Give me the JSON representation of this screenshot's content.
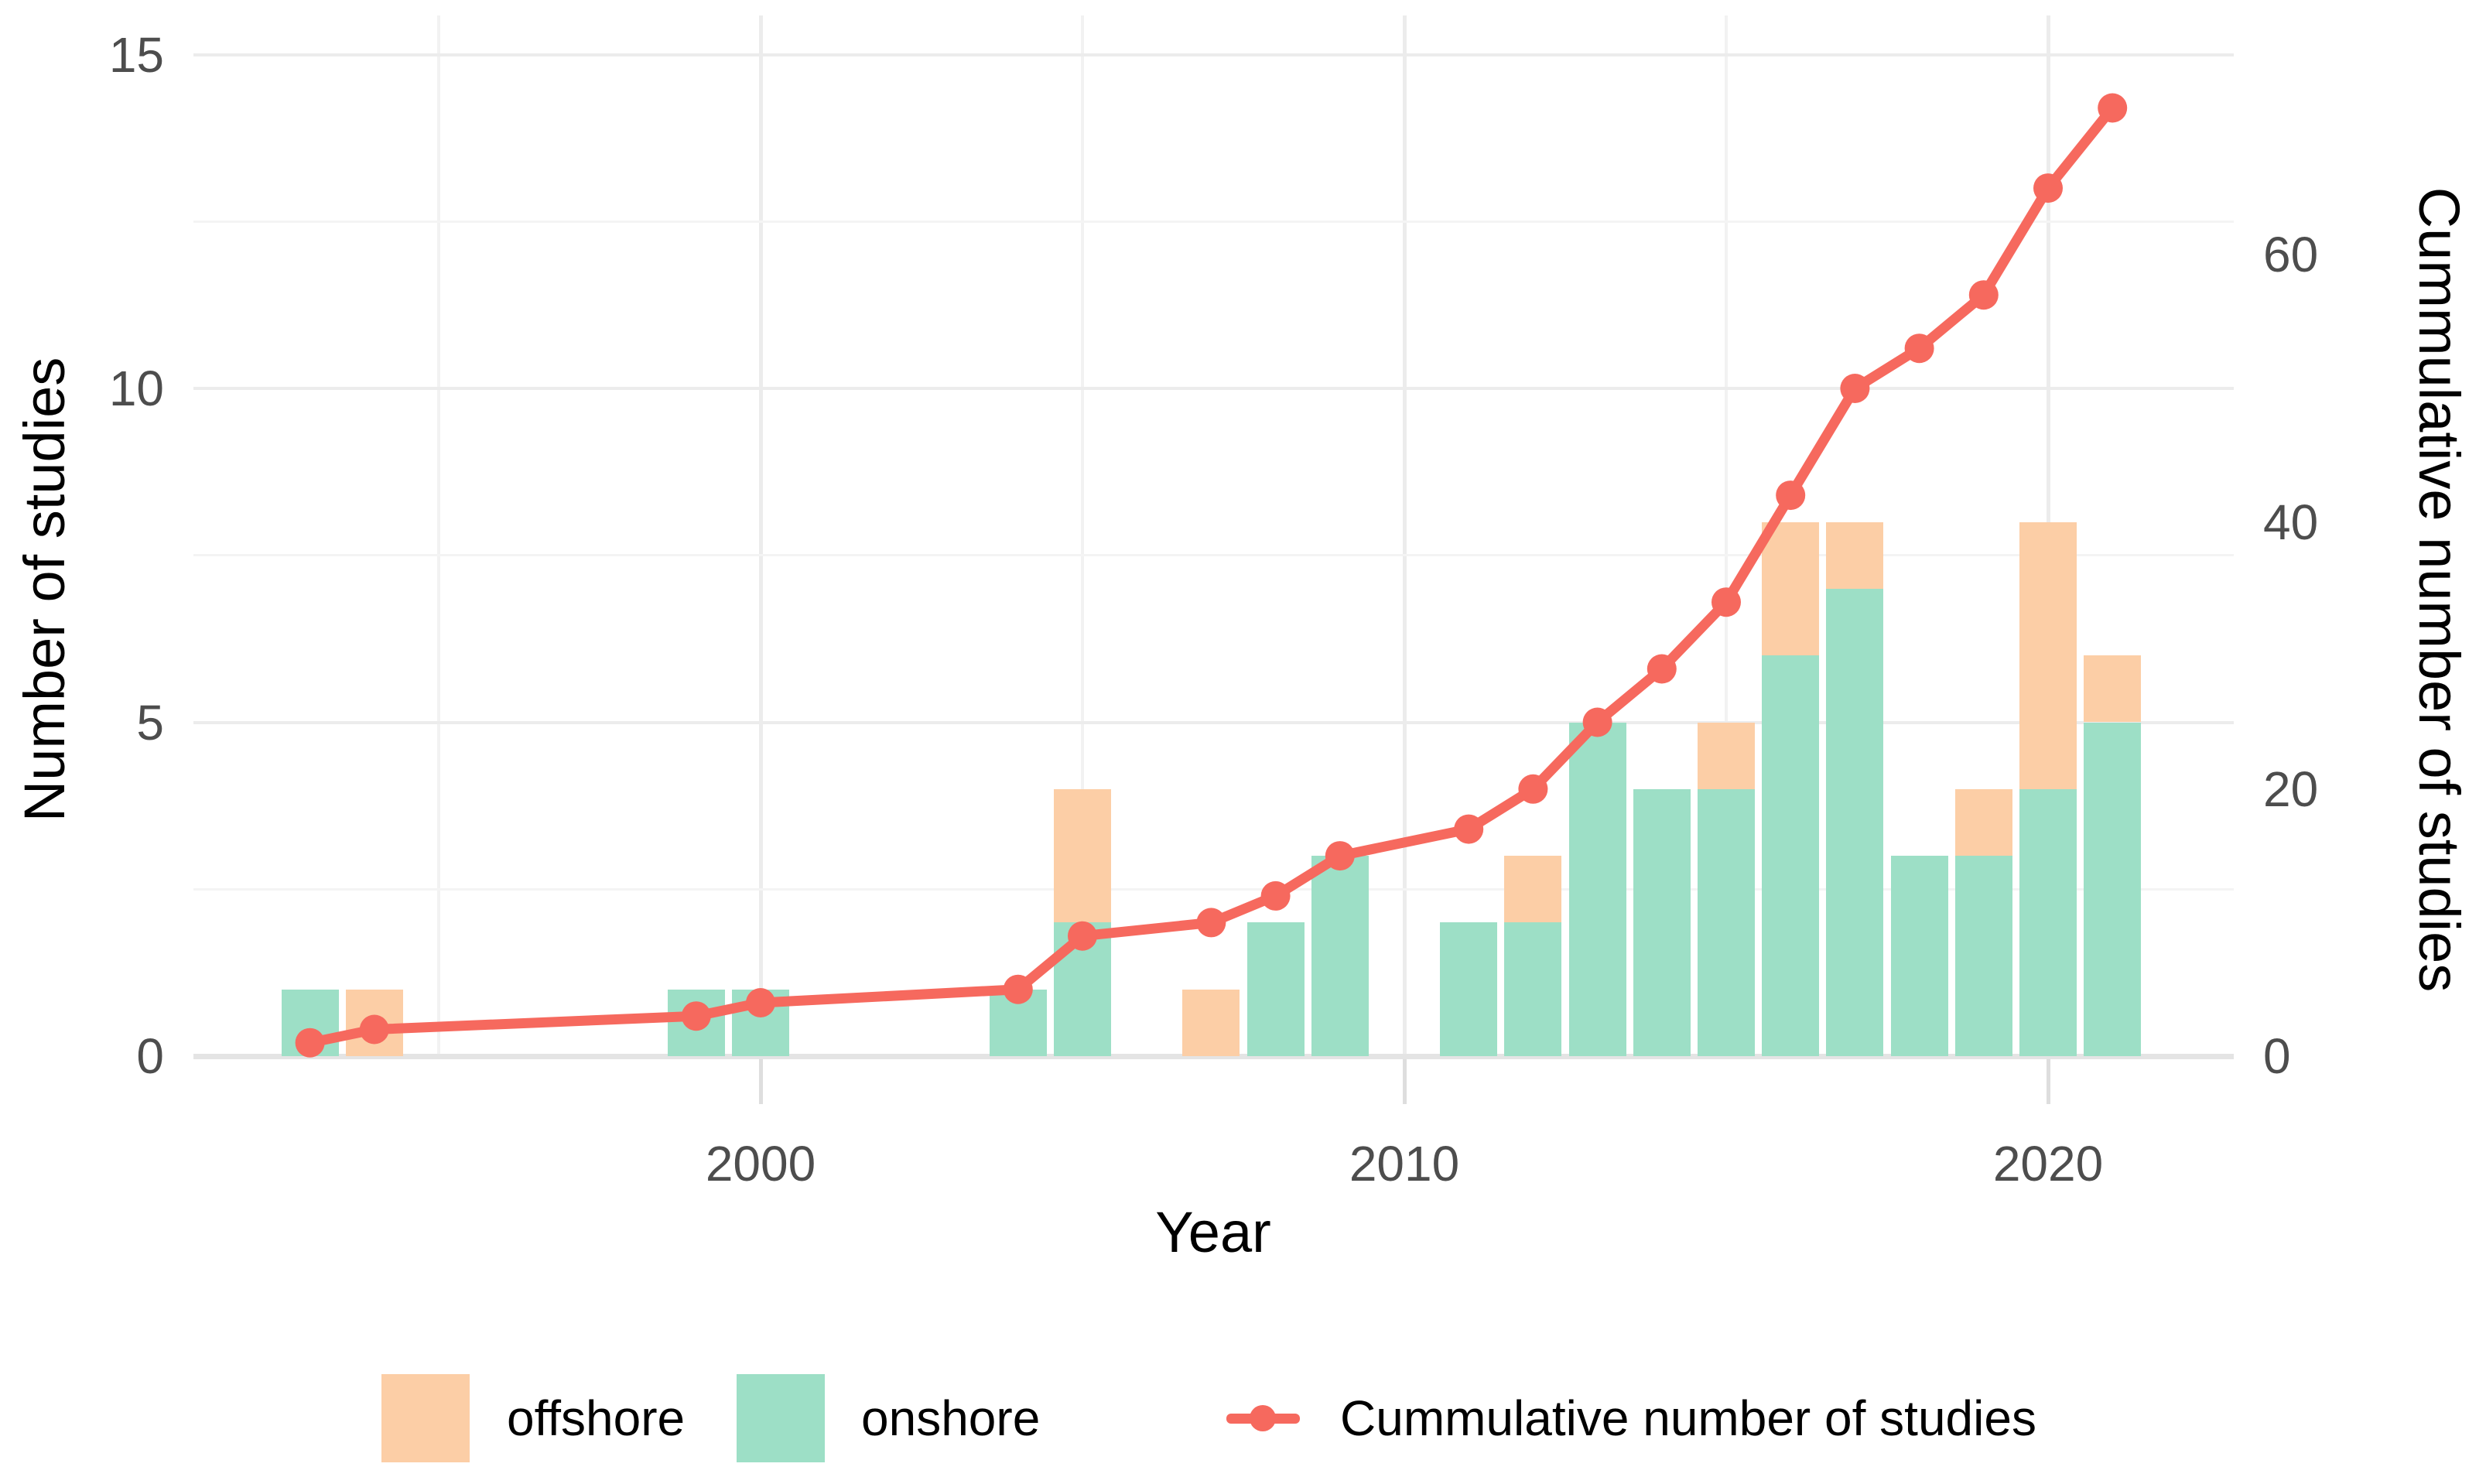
{
  "chart_data": {
    "type": "bar+line",
    "title": "",
    "xlabel": "Year",
    "ylabel_left": "Number of studies",
    "ylabel_right": "Cummulative number of studies",
    "x_ticks": [
      2000,
      2010,
      2020
    ],
    "x_minor_ticks": [
      1995,
      2005,
      2015
    ],
    "xlim": [
      1991.2,
      2022.9
    ],
    "ylim_left": [
      0,
      15.6
    ],
    "y_ticks_left": [
      0,
      5,
      10,
      15
    ],
    "y_minor_ticks_left": [
      2.5,
      7.5,
      12.5
    ],
    "ylim_right": [
      0,
      78
    ],
    "y_ticks_right": [
      0,
      20,
      40,
      60
    ],
    "grid": "on",
    "legend_position": "bottom",
    "bar_series": [
      {
        "name": "onshore",
        "color": "#9DDFC6"
      },
      {
        "name": "offshore",
        "color": "#FCCEA6"
      }
    ],
    "bars": [
      {
        "year": 1993,
        "onshore": 1,
        "offshore": 0
      },
      {
        "year": 1994,
        "onshore": 0,
        "offshore": 1
      },
      {
        "year": 1999,
        "onshore": 1,
        "offshore": 0
      },
      {
        "year": 2000,
        "onshore": 1,
        "offshore": 0
      },
      {
        "year": 2004,
        "onshore": 1,
        "offshore": 0
      },
      {
        "year": 2005,
        "onshore": 2,
        "offshore": 2
      },
      {
        "year": 2007,
        "onshore": 0,
        "offshore": 1
      },
      {
        "year": 2008,
        "onshore": 2,
        "offshore": 0
      },
      {
        "year": 2009,
        "onshore": 3,
        "offshore": 0
      },
      {
        "year": 2011,
        "onshore": 2,
        "offshore": 0
      },
      {
        "year": 2012,
        "onshore": 2,
        "offshore": 1
      },
      {
        "year": 2013,
        "onshore": 5,
        "offshore": 0
      },
      {
        "year": 2014,
        "onshore": 4,
        "offshore": 0
      },
      {
        "year": 2015,
        "onshore": 4,
        "offshore": 1
      },
      {
        "year": 2016,
        "onshore": 6,
        "offshore": 2
      },
      {
        "year": 2017,
        "onshore": 7,
        "offshore": 1
      },
      {
        "year": 2018,
        "onshore": 3,
        "offshore": 0
      },
      {
        "year": 2019,
        "onshore": 3,
        "offshore": 1
      },
      {
        "year": 2020,
        "onshore": 4,
        "offshore": 4
      },
      {
        "year": 2021,
        "onshore": 5,
        "offshore": 1
      }
    ],
    "line": {
      "name": "Cummulative number of studies",
      "color": "#F6695E",
      "axis": "right",
      "points": [
        {
          "year": 1993,
          "value": 1
        },
        {
          "year": 1994,
          "value": 2
        },
        {
          "year": 1999,
          "value": 3
        },
        {
          "year": 2000,
          "value": 4
        },
        {
          "year": 2004,
          "value": 5
        },
        {
          "year": 2005,
          "value": 9
        },
        {
          "year": 2007,
          "value": 10
        },
        {
          "year": 2008,
          "value": 12
        },
        {
          "year": 2009,
          "value": 15
        },
        {
          "year": 2011,
          "value": 17
        },
        {
          "year": 2012,
          "value": 20
        },
        {
          "year": 2013,
          "value": 25
        },
        {
          "year": 2014,
          "value": 29
        },
        {
          "year": 2015,
          "value": 34
        },
        {
          "year": 2016,
          "value": 42
        },
        {
          "year": 2017,
          "value": 50
        },
        {
          "year": 2018,
          "value": 53
        },
        {
          "year": 2019,
          "value": 57
        },
        {
          "year": 2020,
          "value": 65
        },
        {
          "year": 2021,
          "value": 71
        }
      ]
    },
    "legend": [
      {
        "kind": "square",
        "label": "offshore",
        "color": "#FCCEA6"
      },
      {
        "kind": "square",
        "label": "onshore",
        "color": "#9DDFC6"
      },
      {
        "kind": "line-dot",
        "label": "Cummulative number of studies",
        "color": "#F6695E"
      }
    ],
    "colors": {
      "offshore": "#FCCEA6",
      "onshore": "#9DDFC6",
      "cumulative_line": "#F6695E",
      "grid_major": "#ECECEC",
      "grid_minor": "#F2F2F2",
      "axis_baseline": "#E4E4E4",
      "tick_label": "#4D4D4D",
      "title_text": "#000000"
    }
  }
}
